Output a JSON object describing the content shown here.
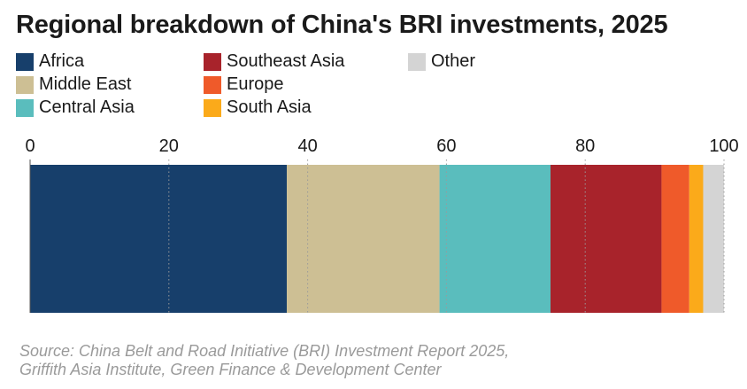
{
  "chart_data": {
    "type": "bar",
    "orientation": "horizontal-stacked",
    "title": "Regional breakdown of China's BRI investments, 2025",
    "categories": [
      "Regional breakdown"
    ],
    "series": [
      {
        "name": "Africa",
        "values": [
          37
        ],
        "color": "#173f6b"
      },
      {
        "name": "Middle East",
        "values": [
          22
        ],
        "color": "#cdbf94"
      },
      {
        "name": "Central Asia",
        "values": [
          16
        ],
        "color": "#5abdbd"
      },
      {
        "name": "Southeast Asia",
        "values": [
          16
        ],
        "color": "#a8232b"
      },
      {
        "name": "Europe",
        "values": [
          4
        ],
        "color": "#ef5a2a"
      },
      {
        "name": "South Asia",
        "values": [
          2
        ],
        "color": "#fbaa1a"
      },
      {
        "name": "Other",
        "values": [
          3
        ],
        "color": "#d4d4d4"
      }
    ],
    "xlim": [
      0,
      100
    ],
    "ticks": [
      "0",
      "20",
      "40",
      "60",
      "80",
      "100"
    ],
    "grid": "dotted-vertical",
    "legend_position": "top",
    "source": "Source: China Belt and Road Initiative (BRI) Investment Report 2025,\nGriffith Asia Institute, Green Finance & Development Center"
  }
}
